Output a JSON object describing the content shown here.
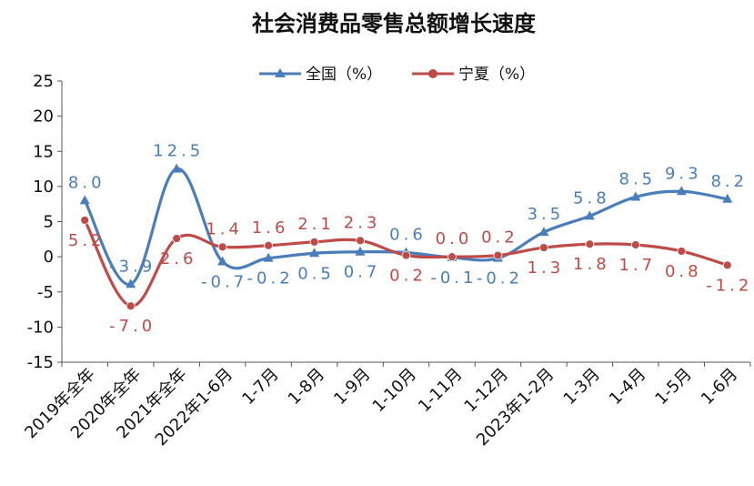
{
  "chart_data": {
    "type": "line",
    "title": "社会消费品零售总额增长速度",
    "xlabel": "",
    "ylabel": "",
    "ylim": [
      -15,
      25
    ],
    "yticks": [
      -15,
      -10,
      -5,
      0,
      5,
      10,
      15,
      20,
      25
    ],
    "grid": false,
    "legend_position": "top",
    "categories": [
      "2019年全年",
      "2020年全年",
      "2021年全年",
      "2022年1-6月",
      "1-7月",
      "1-8月",
      "1-9月",
      "1-10月",
      "1-11月",
      "1-12月",
      "2023年1-2月",
      "1-3月",
      "1-4月",
      "1-5月",
      "1-6月"
    ],
    "series": [
      {
        "name": "全国（%）",
        "color": "#4a7ebb",
        "marker": "triangle",
        "values": [
          8.0,
          -3.9,
          12.5,
          -0.7,
          -0.2,
          0.5,
          0.7,
          0.6,
          -0.1,
          -0.2,
          3.5,
          5.8,
          8.5,
          9.3,
          8.2
        ],
        "labels": [
          "8.0",
          "-3.9",
          "12.5",
          "-0.7",
          "-0.2",
          "0.5",
          "0.7",
          "0.6",
          "-0.1",
          "-0.2",
          "3.5",
          "5.8",
          "8.5",
          "9.3",
          "8.2"
        ]
      },
      {
        "name": "宁夏（%）",
        "color": "#be4b48",
        "marker": "circle",
        "values": [
          5.2,
          -7.0,
          2.6,
          1.4,
          1.6,
          2.1,
          2.3,
          0.2,
          0.0,
          0.2,
          1.3,
          1.8,
          1.7,
          0.8,
          -1.2
        ],
        "labels": [
          "5.2",
          "-7.0",
          "2.6",
          "1.4",
          "1.6",
          "2.1",
          "2.3",
          "0.2",
          "0.0",
          "0.2",
          "1.3",
          "1.8",
          "1.7",
          "0.8",
          "-1.2"
        ]
      }
    ]
  }
}
